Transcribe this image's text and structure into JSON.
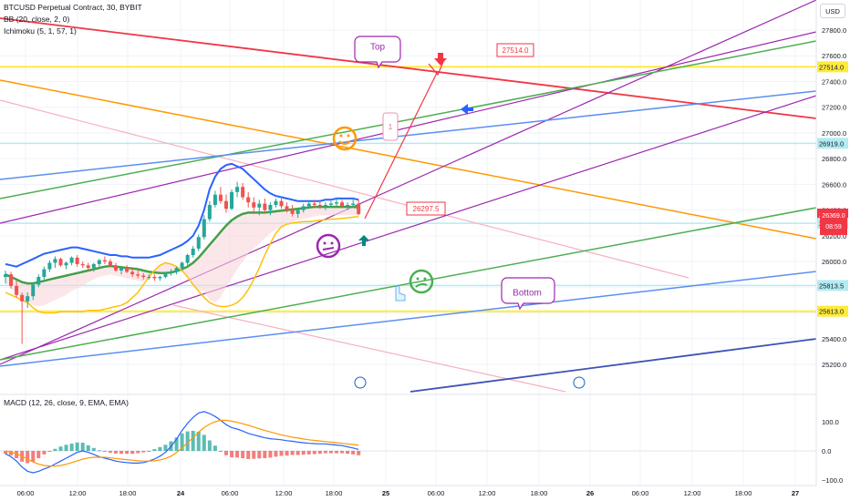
{
  "header": {
    "title": "BTCUSD Perpetual Contract, 30, BYBIT",
    "bb": "BB (20, close, 2, 0)",
    "ichimoku": "Ichimoku (5, 1, 57, 1)",
    "currency": "USD",
    "macd": "MACD (12, 26, close, 9, EMA, EMA)"
  },
  "countdown": {
    "price": "26369.0",
    "time": "08:59"
  },
  "colors": {
    "up": "#26a69a",
    "down": "#ef5350",
    "bb": "#2962ff",
    "basis": "#43a047",
    "tenkan": "#ffc107",
    "red_line": "#f23645",
    "orange": "#ff9800",
    "purple": "#9c27b0",
    "green": "#4caf50",
    "blue": "#5b8ff0",
    "pink": "#f7b0c2",
    "yellow": "#ffeb3b",
    "cyan": "#b2ebf2"
  },
  "chart_data": {
    "type": "candlestick",
    "symbol": "BTCUSD",
    "interval": "30",
    "price_axis": {
      "ticks": [
        25200,
        25400,
        25600,
        25800,
        26000,
        26200,
        26400,
        26600,
        26800,
        27000,
        27200,
        27400,
        27600,
        27800
      ]
    },
    "price_labels": [
      {
        "price": 27514.0,
        "text": "27514.0",
        "color": "#ffeb3b"
      },
      {
        "price": 26919.0,
        "text": "26919.0",
        "color": "#b2ebf2"
      },
      {
        "price": 26369.0,
        "text": "26369.0",
        "color": "#f23645"
      },
      {
        "price": 26297.5,
        "text": "26297.5",
        "color": "#b2ebf2"
      },
      {
        "price": 25813.5,
        "text": "25813.5",
        "color": "#b2ebf2"
      },
      {
        "price": 25613.0,
        "text": "25613.0",
        "color": "#ffeb3b"
      }
    ],
    "time_axis": [
      "06:00",
      "12:00",
      "18:00",
      "24",
      "06:00",
      "12:00",
      "18:00",
      "25",
      "06:00",
      "12:00",
      "18:00",
      "26",
      "06:00",
      "12:00",
      "18:00",
      "27"
    ],
    "annotations": [
      {
        "text": "Top",
        "type": "callout"
      },
      {
        "text": "27514.0",
        "type": "price-label"
      },
      {
        "text": "26297.5",
        "type": "price-label"
      },
      {
        "text": "Bottom",
        "type": "callout"
      },
      {
        "text": "1",
        "type": "note"
      }
    ],
    "macd_axis": [
      "100.0",
      "0.0",
      "−100.0"
    ],
    "candles": [
      [
        25880,
        25930,
        25830,
        25900
      ],
      [
        25900,
        25920,
        25790,
        25810
      ],
      [
        25810,
        25850,
        25720,
        25740
      ],
      [
        25740,
        25760,
        25360,
        25690
      ],
      [
        25690,
        25760,
        25640,
        25730
      ],
      [
        25730,
        25840,
        25700,
        25820
      ],
      [
        25820,
        25900,
        25800,
        25880
      ],
      [
        25880,
        25960,
        25860,
        25940
      ],
      [
        25940,
        26010,
        25920,
        25990
      ],
      [
        25990,
        26040,
        25950,
        26020
      ],
      [
        26020,
        26030,
        25960,
        25970
      ],
      [
        25970,
        26000,
        25940,
        25990
      ],
      [
        25990,
        26040,
        25970,
        26030
      ],
      [
        26030,
        26050,
        25960,
        25980
      ],
      [
        25980,
        26000,
        25950,
        25970
      ],
      [
        25970,
        25990,
        25930,
        25950
      ],
      [
        25950,
        25990,
        25920,
        25980
      ],
      [
        25980,
        26020,
        25960,
        26010
      ],
      [
        26010,
        26040,
        25980,
        26000
      ],
      [
        26000,
        26020,
        25960,
        25970
      ],
      [
        25970,
        25990,
        25920,
        25930
      ],
      [
        25930,
        25960,
        25900,
        25950
      ],
      [
        25950,
        25970,
        25910,
        25920
      ],
      [
        25920,
        25950,
        25880,
        25900
      ],
      [
        25900,
        25930,
        25870,
        25890
      ],
      [
        25890,
        25910,
        25860,
        25880
      ],
      [
        25880,
        25900,
        25860,
        25880
      ],
      [
        25880,
        25900,
        25850,
        25870
      ],
      [
        25870,
        25890,
        25850,
        25880
      ],
      [
        25880,
        25920,
        25870,
        25910
      ],
      [
        25910,
        25940,
        25890,
        25920
      ],
      [
        25920,
        25960,
        25900,
        25950
      ],
      [
        25950,
        26000,
        25930,
        25990
      ],
      [
        25990,
        26060,
        25970,
        26050
      ],
      [
        26050,
        26120,
        26030,
        26100
      ],
      [
        26100,
        26210,
        26080,
        26190
      ],
      [
        26190,
        26360,
        26170,
        26330
      ],
      [
        26330,
        26470,
        26310,
        26440
      ],
      [
        26440,
        26550,
        26420,
        26520
      ],
      [
        26520,
        26580,
        26450,
        26470
      ],
      [
        26470,
        26520,
        26380,
        26410
      ],
      [
        26410,
        26560,
        26400,
        26540
      ],
      [
        26540,
        26620,
        26500,
        26580
      ],
      [
        26580,
        26610,
        26480,
        26500
      ],
      [
        26500,
        26540,
        26420,
        26460
      ],
      [
        26460,
        26500,
        26370,
        26420
      ],
      [
        26420,
        26480,
        26360,
        26450
      ],
      [
        26450,
        26490,
        26380,
        26400
      ],
      [
        26400,
        26460,
        26360,
        26440
      ],
      [
        26440,
        26490,
        26420,
        26470
      ],
      [
        26470,
        26490,
        26410,
        26430
      ],
      [
        26430,
        26460,
        26380,
        26400
      ],
      [
        26400,
        26440,
        26350,
        26370
      ],
      [
        26370,
        26420,
        26340,
        26400
      ],
      [
        26400,
        26450,
        26380,
        26430
      ],
      [
        26430,
        26470,
        26410,
        26450
      ],
      [
        26450,
        26480,
        26420,
        26440
      ],
      [
        26440,
        26470,
        26410,
        26430
      ],
      [
        26430,
        26460,
        26400,
        26440
      ],
      [
        26440,
        26470,
        26420,
        26450
      ],
      [
        26450,
        26500,
        26430,
        26460
      ],
      [
        26460,
        26480,
        26420,
        26430
      ],
      [
        26430,
        26460,
        26400,
        26440
      ],
      [
        26440,
        26500,
        26420,
        26450
      ],
      [
        26450,
        26480,
        26360,
        26369
      ]
    ],
    "bb_upper": [
      25980,
      25970,
      25960,
      25980,
      26000,
      26020,
      26040,
      26060,
      26070,
      26080,
      26090,
      26100,
      26110,
      26110,
      26100,
      26090,
      26080,
      26070,
      26060,
      26050,
      26050,
      26040,
      26040,
      26030,
      26030,
      26030,
      26030,
      26040,
      26050,
      26070,
      26090,
      26110,
      26130,
      26160,
      26200,
      26280,
      26400,
      26560,
      26660,
      26720,
      26750,
      26760,
      26740,
      26720,
      26680,
      26640,
      26600,
      26560,
      26530,
      26510,
      26500,
      26490,
      26480,
      26470,
      26470,
      26470,
      26470,
      26470,
      26480,
      26480,
      26490,
      26490,
      26490,
      26490,
      26480
    ],
    "bb_basis": [
      25900,
      25880,
      25860,
      25840,
      25830,
      25830,
      25840,
      25850,
      25860,
      25870,
      25880,
      25890,
      25900,
      25910,
      25920,
      25930,
      25940,
      25950,
      25960,
      25965,
      25960,
      25955,
      25950,
      25945,
      25940,
      25930,
      25920,
      25915,
      25910,
      25910,
      25915,
      25925,
      25940,
      25960,
      25990,
      26030,
      26080,
      26130,
      26180,
      26230,
      26280,
      26320,
      26350,
      26370,
      26380,
      26380,
      26380,
      26380,
      26385,
      26390,
      26395,
      26400,
      26405,
      26410,
      26415,
      26420,
      26425,
      26425,
      26425,
      26425,
      26425,
      26425,
      26425,
      26425,
      26420
    ],
    "bb_lower": [
      25830,
      25790,
      25760,
      25700,
      25680,
      25660,
      25650,
      25660,
      25680,
      25700,
      25720,
      25740,
      25770,
      25790,
      25810,
      25840,
      25860,
      25880,
      25890,
      25900,
      25890,
      25880,
      25870,
      25860,
      25850,
      25840,
      25820,
      25810,
      25800,
      25790,
      25780,
      25780,
      25780,
      25780,
      25780,
      25780,
      25770,
      25700,
      25680,
      25720,
      25800,
      25870,
      25940,
      26000,
      26060,
      26100,
      26140,
      26180,
      26220,
      26250,
      26270,
      26290,
      26310,
      26320,
      26330,
      26340,
      26350,
      26360,
      26360,
      26360,
      26360,
      26360,
      26360,
      26360,
      26360
    ],
    "tenkan": [
      25760,
      25740,
      25720,
      25700,
      25680,
      25640,
      25610,
      25600,
      25600,
      25600,
      25610,
      25610,
      25610,
      25610,
      25610,
      25620,
      25620,
      25620,
      25630,
      25640,
      25650,
      25660,
      25680,
      25720,
      25760,
      25820,
      25880,
      25930,
      25970,
      25990,
      25980,
      25960,
      25930,
      25880,
      25820,
      25770,
      25720,
      25680,
      25660,
      25650,
      25650,
      25660,
      25680,
      25720,
      25780,
      25860,
      25950,
      26050,
      26140,
      26220,
      26270,
      26290,
      26300,
      26305,
      26310,
      26310,
      26315,
      26320,
      26325,
      26330,
      26330,
      26335,
      26340,
      26345,
      26350
    ],
    "macd": [
      -10,
      -20,
      -35,
      -55,
      -70,
      -75,
      -70,
      -62,
      -55,
      -45,
      -35,
      -25,
      -15,
      -5,
      0,
      -5,
      -12,
      -20,
      -25,
      -30,
      -35,
      -38,
      -40,
      -42,
      -42,
      -40,
      -35,
      -28,
      -18,
      -5,
      15,
      40,
      70,
      95,
      115,
      130,
      135,
      128,
      118,
      105,
      90,
      80,
      75,
      68,
      60,
      55,
      50,
      45,
      42,
      40,
      38,
      35,
      33,
      30,
      28,
      26,
      25,
      24,
      24,
      22,
      20,
      18,
      14,
      10,
      5
    ],
    "macd_signal": [
      0,
      -5,
      -10,
      -18,
      -28,
      -38,
      -45,
      -50,
      -52,
      -52,
      -50,
      -46,
      -40,
      -34,
      -28,
      -24,
      -22,
      -22,
      -22,
      -24,
      -26,
      -28,
      -30,
      -32,
      -34,
      -35,
      -35,
      -34,
      -31,
      -26,
      -18,
      -6,
      10,
      28,
      46,
      64,
      80,
      92,
      100,
      105,
      105,
      102,
      98,
      93,
      88,
      82,
      76,
      70,
      65,
      60,
      55,
      51,
      47,
      44,
      41,
      38,
      36,
      34,
      32,
      30,
      28,
      26,
      24,
      22,
      20
    ],
    "drawings": [
      {
        "kind": "hline",
        "price": 27514,
        "color": "#ffeb3b"
      },
      {
        "kind": "hline",
        "price": 26919,
        "color": "#b2ebf2"
      },
      {
        "kind": "hline",
        "price": 26297.5,
        "color": "#b2ebf2"
      },
      {
        "kind": "hline",
        "price": 25813.5,
        "color": "#b2ebf2"
      },
      {
        "kind": "hline",
        "price": 25613,
        "color": "#ffeb3b"
      }
    ]
  }
}
